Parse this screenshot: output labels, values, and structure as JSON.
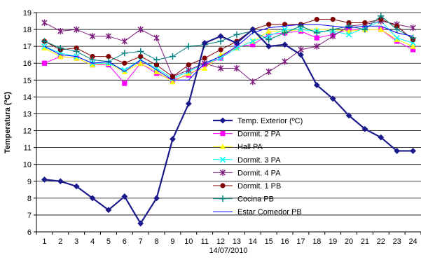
{
  "chart_data": {
    "type": "line",
    "xlabel": "14/07/2010",
    "ylabel": "Temperatura (ºC)",
    "ylim": [
      6,
      19
    ],
    "yticks": [
      6,
      7,
      8,
      9,
      10,
      11,
      12,
      13,
      14,
      15,
      16,
      17,
      18,
      19
    ],
    "grid": "horizontal",
    "legend_position": "inside-right",
    "categories": [
      "1",
      "2",
      "3",
      "4",
      "5",
      "6",
      "7",
      "8",
      "9",
      "10",
      "11",
      "12",
      "13",
      "14",
      "15",
      "16",
      "17",
      "18",
      "19",
      "20",
      "21",
      "22",
      "23",
      "24"
    ],
    "series": [
      {
        "name": "Temp. Exterior (ºC)",
        "color": "#1a1a8c",
        "marker": "diamond",
        "width": 2.2,
        "values": [
          9.1,
          9.0,
          8.7,
          8.0,
          7.3,
          8.1,
          6.5,
          8.0,
          11.5,
          13.6,
          17.2,
          17.6,
          17.2,
          18.0,
          17.0,
          17.1,
          16.5,
          14.7,
          13.9,
          12.9,
          12.1,
          11.6,
          10.8,
          10.8
        ]
      },
      {
        "name": "Dormit. 2 PA",
        "color": "#ff00ff",
        "marker": "square",
        "width": 1,
        "values": [
          16.0,
          16.4,
          16.3,
          15.9,
          15.9,
          14.8,
          16.0,
          15.4,
          15.0,
          15.3,
          15.9,
          16.3,
          17.0,
          17.1,
          17.7,
          17.8,
          17.9,
          17.5,
          17.7,
          18.0,
          18.0,
          18.0,
          17.3,
          16.8
        ]
      },
      {
        "name": "Hall PA",
        "color": "#ffff00",
        "marker": "triangle",
        "width": 1,
        "values": [
          16.9,
          16.4,
          16.3,
          15.9,
          16.0,
          15.5,
          16.0,
          15.5,
          14.9,
          15.4,
          15.7,
          16.5,
          16.9,
          17.3,
          17.9,
          17.9,
          18.0,
          18.0,
          18.0,
          17.9,
          18.0,
          18.0,
          17.4,
          17.0
        ]
      },
      {
        "name": "Dormit. 3 PA",
        "color": "#00ffff",
        "marker": "x",
        "width": 1,
        "values": [
          17.0,
          16.6,
          16.4,
          16.0,
          16.0,
          15.6,
          16.2,
          15.7,
          15.1,
          15.5,
          16.0,
          16.3,
          16.9,
          17.3,
          17.6,
          18.0,
          18.0,
          17.9,
          17.9,
          17.7,
          18.1,
          18.5,
          17.5,
          17.2
        ]
      },
      {
        "name": "Dormit. 4 PA",
        "color": "#7f1f7f",
        "marker": "asterisk",
        "width": 1,
        "values": [
          18.4,
          17.9,
          18.0,
          17.6,
          17.6,
          17.3,
          18.0,
          17.5,
          15.2,
          15.6,
          16.0,
          15.7,
          15.7,
          14.9,
          15.5,
          16.1,
          16.8,
          17.0,
          17.6,
          18.2,
          18.3,
          18.5,
          18.3,
          18.1
        ]
      },
      {
        "name": "Dormit. 1 PB",
        "color": "#800000",
        "marker": "circle",
        "width": 1,
        "values": [
          17.3,
          16.8,
          16.9,
          16.4,
          16.4,
          16.0,
          16.4,
          15.9,
          15.2,
          15.9,
          16.3,
          16.8,
          17.3,
          18.0,
          18.3,
          18.3,
          18.3,
          18.6,
          18.6,
          18.4,
          18.4,
          18.6,
          18.2,
          17.4
        ]
      },
      {
        "name": "Cocina PB",
        "color": "#008080",
        "marker": "plus",
        "width": 1,
        "values": [
          17.3,
          16.9,
          16.7,
          16.2,
          16.1,
          16.6,
          16.7,
          16.2,
          16.4,
          17.0,
          17.1,
          17.3,
          17.7,
          17.9,
          17.4,
          17.8,
          18.2,
          17.8,
          18.0,
          18.2,
          18.0,
          18.8,
          18.0,
          17.5
        ]
      },
      {
        "name": "Estar Comedor PB",
        "color": "#0000ff",
        "marker": "none",
        "width": 1,
        "values": [
          17.0,
          16.5,
          16.4,
          16.0,
          16.1,
          15.5,
          16.2,
          15.6,
          15.0,
          15.0,
          16.0,
          16.4,
          17.0,
          17.8,
          18.1,
          18.2,
          18.3,
          18.3,
          18.2,
          18.1,
          18.2,
          18.2,
          17.8,
          17.6
        ]
      }
    ]
  }
}
